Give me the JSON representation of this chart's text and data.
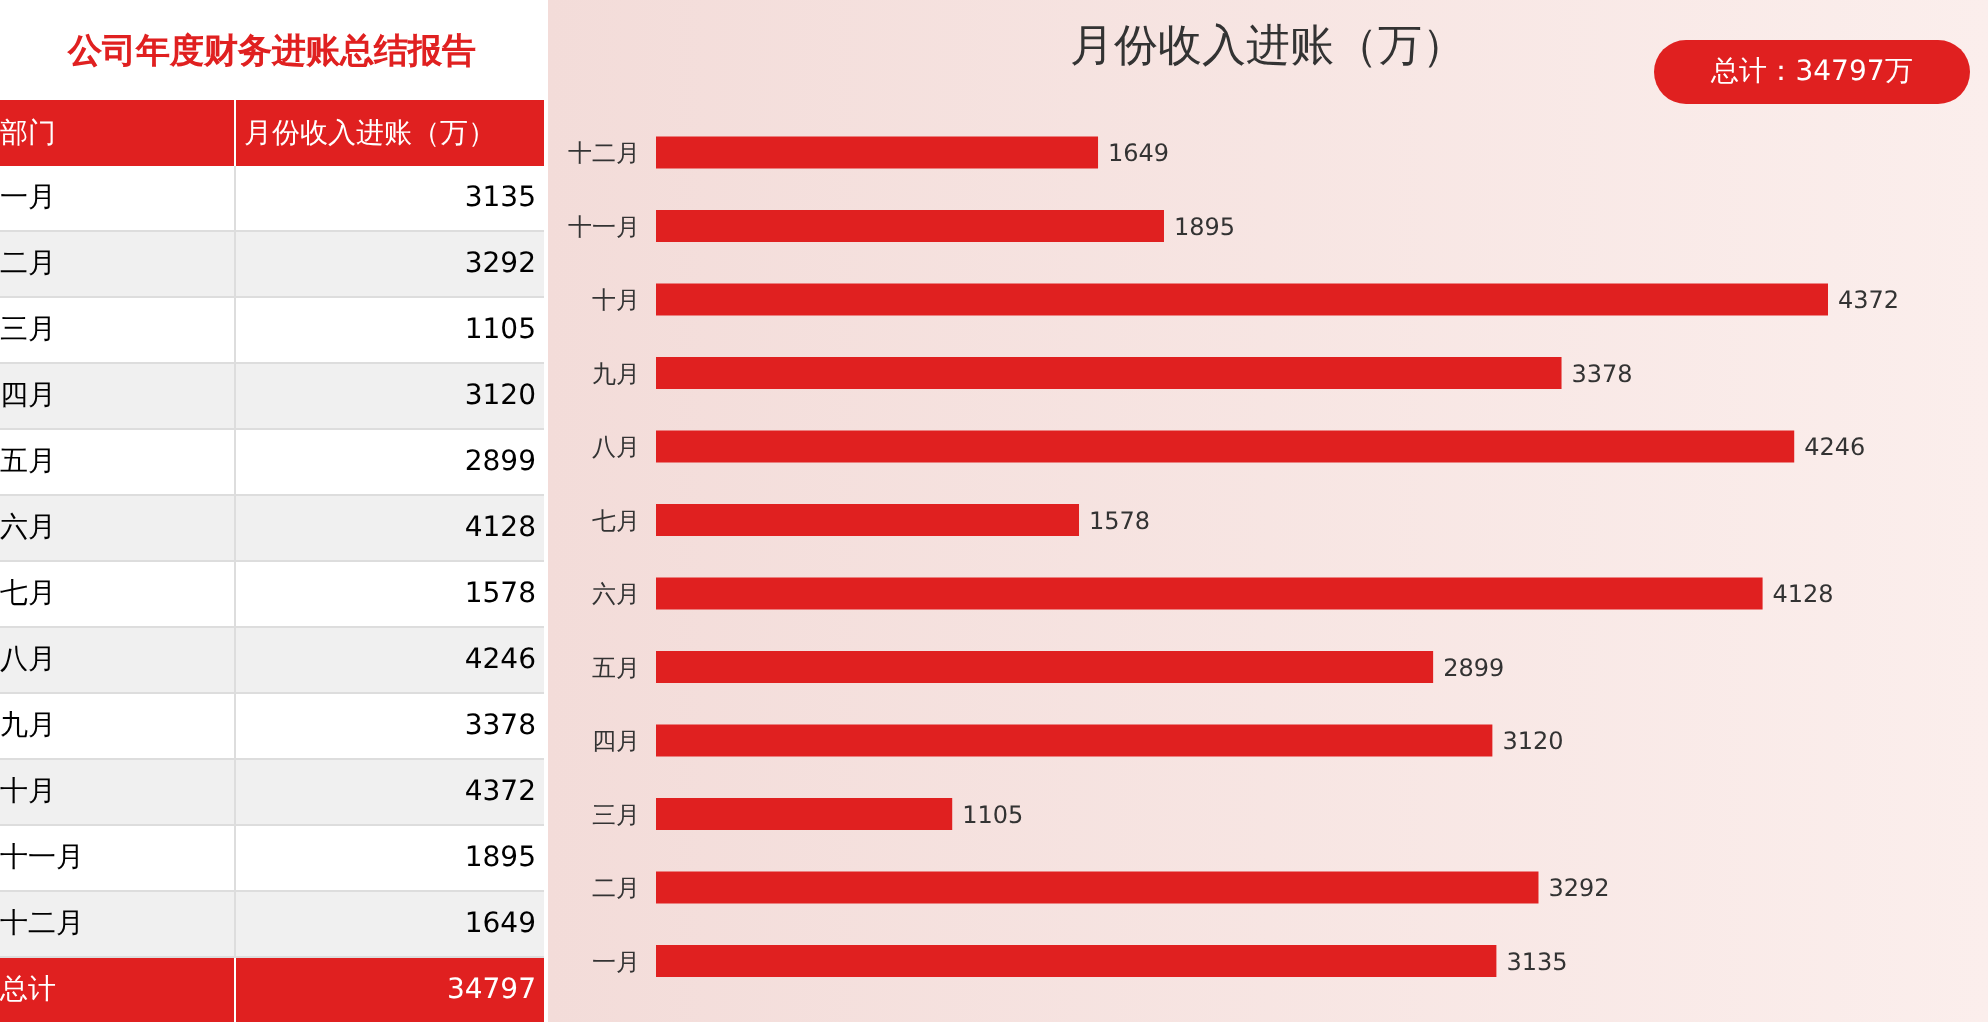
{
  "chart_data": [
    {
      "type": "other",
      "title": "公司年度财务进账总结报告",
      "categories": [
        "一月",
        "二月",
        "三月",
        "四月",
        "五月",
        "六月",
        "七月",
        "八月",
        "九月",
        "十月",
        "十一月",
        "十二月"
      ],
      "values": [
        3135,
        3292,
        1105,
        3120,
        2899,
        4128,
        1578,
        4246,
        3378,
        4372,
        1895,
        1649
      ],
      "data_labels": true,
      "annotations": [
        "部门",
        "月份收入进账（万）",
        "总计",
        "34797"
      ]
    },
    {
      "type": "bar",
      "orientation": "horizontal",
      "title": "月份收入进账（万）",
      "categories": [
        "十二月",
        "十一月",
        "十月",
        "九月",
        "八月",
        "七月",
        "六月",
        "五月",
        "四月",
        "三月",
        "二月",
        "一月"
      ],
      "values": [
        1649,
        1895,
        4372,
        3378,
        4246,
        1578,
        4128,
        2899,
        3120,
        1105,
        3292,
        3135
      ],
      "color": "#e02020",
      "data_labels": true,
      "annotations": [
        "总计：34797万"
      ]
    }
  ]
}
